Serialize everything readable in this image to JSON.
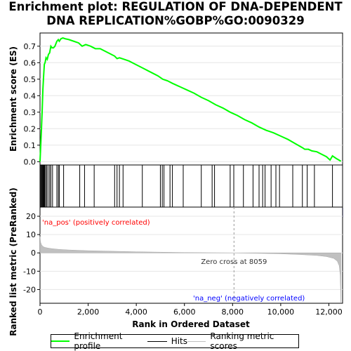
{
  "title": {
    "line1": "Enrichment plot: REGULATION OF DNA-DEPENDENT",
    "line2": "DNA REPLICATION%GOBP%GO:0090329"
  },
  "colors": {
    "es": "#00ff00",
    "hits": "#000000",
    "metric": "#c0c0c0",
    "pos": "#ff0000",
    "neg": "#0000ff"
  },
  "chart_data": [
    {
      "type": "line",
      "ylabel": "Enrichment score (ES)",
      "xlim": [
        0,
        12570
      ],
      "ylim": [
        -0.02,
        0.78
      ],
      "yticks": [
        0.0,
        0.1,
        0.2,
        0.3,
        0.4,
        0.5,
        0.6,
        0.7
      ],
      "ytick_labels": [
        "0.0",
        "0.1",
        "0.2",
        "0.3",
        "0.4",
        "0.5",
        "0.6",
        "0.7"
      ],
      "series": [
        {
          "name": "Enrichment profile",
          "x": [
            0,
            30,
            60,
            90,
            120,
            150,
            180,
            210,
            250,
            300,
            350,
            400,
            450,
            500,
            560,
            620,
            700,
            760,
            800,
            870,
            950,
            1050,
            1200,
            1400,
            1600,
            1750,
            1900,
            2100,
            2300,
            2500,
            2700,
            2900,
            3100,
            3200,
            3300,
            3500,
            3700,
            3900,
            4100,
            4300,
            4500,
            4700,
            4900,
            5100,
            5300,
            5500,
            5800,
            6100,
            6400,
            6700,
            7000,
            7300,
            7600,
            7900,
            8200,
            8500,
            8800,
            9100,
            9400,
            9700,
            10000,
            10300,
            10600,
            10900,
            11000,
            11150,
            11300,
            11500,
            11700,
            11900,
            12050,
            12150,
            12300,
            12500
          ],
          "values": [
            0.0,
            0.1,
            0.2,
            0.31,
            0.44,
            0.52,
            0.59,
            0.6,
            0.63,
            0.62,
            0.65,
            0.66,
            0.7,
            0.69,
            0.69,
            0.7,
            0.73,
            0.74,
            0.73,
            0.745,
            0.75,
            0.745,
            0.74,
            0.73,
            0.72,
            0.7,
            0.71,
            0.7,
            0.685,
            0.685,
            0.67,
            0.655,
            0.64,
            0.625,
            0.63,
            0.62,
            0.61,
            0.595,
            0.58,
            0.565,
            0.55,
            0.535,
            0.52,
            0.5,
            0.49,
            0.475,
            0.455,
            0.435,
            0.415,
            0.39,
            0.37,
            0.345,
            0.325,
            0.3,
            0.28,
            0.255,
            0.235,
            0.21,
            0.19,
            0.175,
            0.155,
            0.135,
            0.11,
            0.085,
            0.075,
            0.075,
            0.065,
            0.06,
            0.045,
            0.03,
            0.01,
            0.035,
            0.02,
            0.003
          ]
        }
      ]
    },
    {
      "type": "scatter",
      "series": [
        {
          "name": "Hits",
          "x": [
            10,
            40,
            70,
            100,
            130,
            160,
            190,
            230,
            270,
            330,
            400,
            450,
            520,
            700,
            760,
            800,
            980,
            1650,
            1850,
            2250,
            3100,
            3200,
            3300,
            3450,
            4250,
            5000,
            5080,
            5150,
            5400,
            5500,
            5950,
            6700,
            7150,
            7250,
            7900,
            8050,
            8450,
            8850,
            9100,
            9250,
            9350,
            9600,
            9800,
            9950,
            10500,
            10900,
            11100,
            11400,
            12150
          ]
        }
      ]
    },
    {
      "type": "area",
      "ylabel": "Ranked list metric (PreRanked)",
      "xlabel": "Rank in Ordered Dataset",
      "xlim": [
        0,
        12570
      ],
      "ylim": [
        -27.5,
        25
      ],
      "xticks": [
        0,
        2000,
        4000,
        6000,
        8000,
        10000,
        12000
      ],
      "xtick_labels": [
        "0",
        "2,000",
        "4,000",
        "6,000",
        "8,000",
        "10,000",
        "12,000"
      ],
      "yticks": [
        -20,
        -10,
        0,
        10,
        20
      ],
      "ytick_labels": [
        "-20",
        "-10",
        "0",
        "10",
        "20"
      ],
      "series": [
        {
          "name": "Ranking metric scores",
          "x": [
            0,
            20,
            60,
            120,
            200,
            350,
            500,
            800,
            1200,
            2000,
            3000,
            4000,
            5000,
            6000,
            7000,
            8059,
            9000,
            10000,
            10800,
            11500,
            11900,
            12200,
            12350,
            12430,
            12470,
            12500
          ],
          "values": [
            9,
            6,
            4.5,
            3.5,
            3.0,
            2.6,
            2.3,
            1.9,
            1.6,
            1.2,
            0.9,
            0.6,
            0.4,
            0.2,
            0.1,
            0,
            -0.2,
            -0.5,
            -0.9,
            -1.4,
            -2.0,
            -3.0,
            -4.5,
            -7,
            -12,
            -27
          ]
        }
      ],
      "zero_cross_label": "Zero cross at 8059",
      "pos_label": "'na_pos' (positively correlated)",
      "neg_label": "'na_neg' (negatively correlated)"
    }
  ],
  "legend": {
    "items": [
      {
        "label": "Enrichment profile"
      },
      {
        "label": "Hits"
      },
      {
        "label": "Ranking metric scores"
      }
    ]
  }
}
